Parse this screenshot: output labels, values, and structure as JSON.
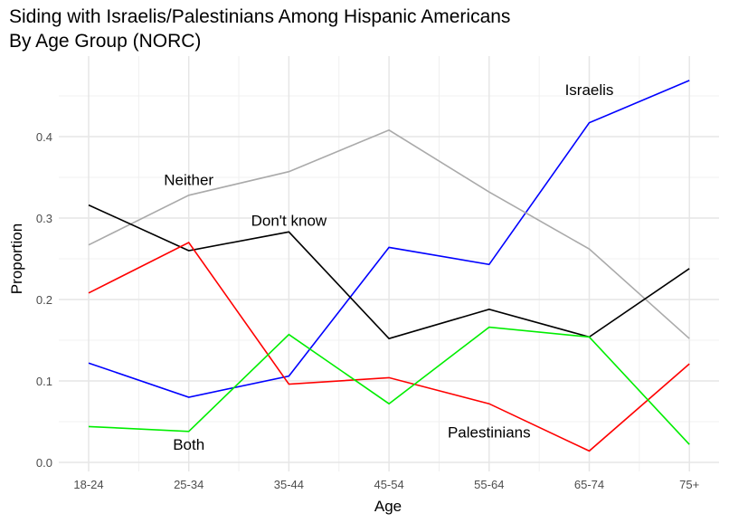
{
  "chart_data": {
    "type": "line",
    "title": "Siding with Israelis/Palestinians Among Hispanic Americans",
    "subtitle": "By Age Group (NORC)",
    "xlabel": "Age",
    "ylabel": "Proportion",
    "categories": [
      "18-24",
      "25-34",
      "35-44",
      "45-54",
      "55-64",
      "65-74",
      "75+"
    ],
    "ylim": [
      0,
      0.48
    ],
    "yticks": [
      "0.0",
      "0.1",
      "0.2",
      "0.3",
      "0.4"
    ],
    "grid": true,
    "series": [
      {
        "name": "Israelis",
        "color": "#0000ff",
        "values": [
          0.122,
          0.08,
          0.106,
          0.264,
          0.243,
          0.417,
          0.469
        ]
      },
      {
        "name": "Neither",
        "color": "#aaaaaa",
        "values": [
          0.267,
          0.328,
          0.357,
          0.408,
          0.332,
          0.262,
          0.152
        ]
      },
      {
        "name": "Don't know",
        "color": "#000000",
        "values": [
          0.316,
          0.26,
          0.283,
          0.152,
          0.188,
          0.154,
          0.238
        ]
      },
      {
        "name": "Palestinians",
        "color": "#ff0000",
        "values": [
          0.208,
          0.27,
          0.096,
          0.104,
          0.072,
          0.014,
          0.121
        ]
      },
      {
        "name": "Both",
        "color": "#00ee00",
        "values": [
          0.044,
          0.038,
          0.157,
          0.072,
          0.166,
          0.154,
          0.022
        ]
      }
    ],
    "annotations": [
      {
        "text": "Israelis",
        "x": "65-74",
        "y": 0.458
      },
      {
        "text": "Neither",
        "x": "25-34",
        "y": 0.347
      },
      {
        "text": "Don't know",
        "x": "35-44",
        "y": 0.297
      },
      {
        "text": "Palestinians",
        "x": "55-64",
        "y": 0.037
      },
      {
        "text": "Both",
        "x": "25-34",
        "y": 0.022
      }
    ]
  }
}
